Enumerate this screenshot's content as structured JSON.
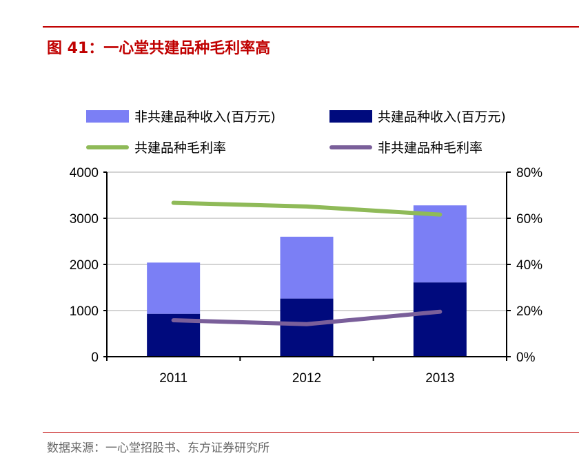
{
  "title": "图 41：一心堂共建品种毛利率高",
  "source": "数据来源：一心堂招股书、东方证券研究所",
  "chart_data": {
    "type": "bar",
    "categories": [
      "2011",
      "2012",
      "2013"
    ],
    "series": [
      {
        "name": "非共建品种收入(百万元)",
        "kind": "bar",
        "axis": "left",
        "color": "#7b7ff5",
        "values": [
          1110,
          1340,
          1670
        ]
      },
      {
        "name": "共建品种收入(百万元)",
        "kind": "bar",
        "axis": "left",
        "color": "#000a7d",
        "values": [
          930,
          1260,
          1610
        ]
      },
      {
        "name": "共建品种毛利率",
        "kind": "line",
        "axis": "right",
        "color": "#8fba58",
        "values": [
          66.7,
          65.1,
          61.6
        ]
      },
      {
        "name": "非共建品种毛利率",
        "kind": "line",
        "axis": "right",
        "color": "#7a5f9a",
        "values": [
          15.8,
          14.1,
          19.5
        ]
      }
    ],
    "stacked": true,
    "ylim": [
      0,
      4000
    ],
    "yticks": [
      "0",
      "1000",
      "2000",
      "3000",
      "4000"
    ],
    "y2lim": [
      0,
      80
    ],
    "y2ticks": [
      "0%",
      "20%",
      "40%",
      "60%",
      "80%"
    ],
    "grid": true,
    "legend": "top"
  }
}
